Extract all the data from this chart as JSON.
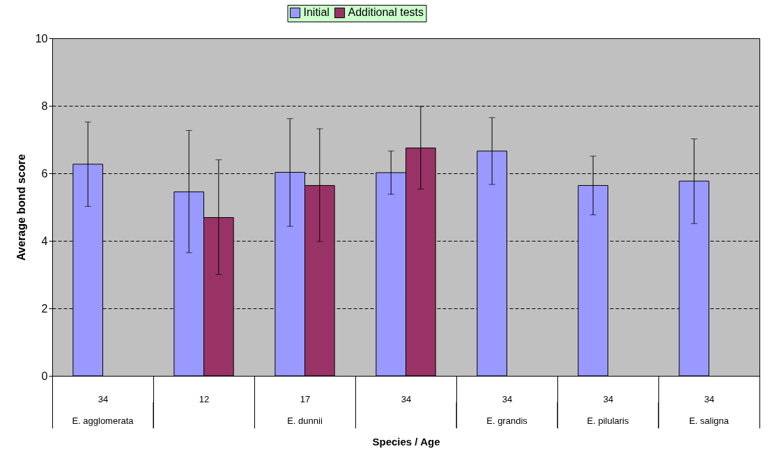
{
  "chart_data": {
    "type": "bar",
    "xlabel": "Species / Age",
    "ylabel": "Average bond score",
    "categories": [
      "34",
      "12",
      "17",
      "34",
      "34",
      "34",
      "34"
    ],
    "series": [
      {
        "name": "Initial",
        "color": "#9999ff",
        "values": [
          6.27,
          5.45,
          6.03,
          6.02,
          6.66,
          5.64,
          5.77
        ],
        "errors": [
          [
            5.02,
            7.52
          ],
          [
            3.65,
            7.27
          ],
          [
            4.43,
            7.62
          ],
          [
            5.38,
            6.66
          ],
          [
            5.67,
            7.65
          ],
          [
            4.77,
            6.51
          ],
          [
            4.51,
            7.02
          ]
        ]
      },
      {
        "name": "Additional tests",
        "color": "#993366",
        "values": [
          null,
          4.69,
          5.64,
          6.75,
          null,
          null,
          null
        ],
        "errors": [
          null,
          [
            3.0,
            6.4
          ],
          [
            3.98,
            7.32
          ],
          [
            5.53,
            7.98
          ],
          null,
          null,
          null
        ]
      }
    ],
    "annotations": [
      "E. agglomerata",
      "E. dunnii",
      "E. grandis",
      "E. pilularis",
      "E. saligna"
    ],
    "ylim": [
      0,
      10
    ],
    "yticks": [
      0,
      2,
      4,
      6,
      8,
      10
    ],
    "grid": "y",
    "legend": "top"
  }
}
